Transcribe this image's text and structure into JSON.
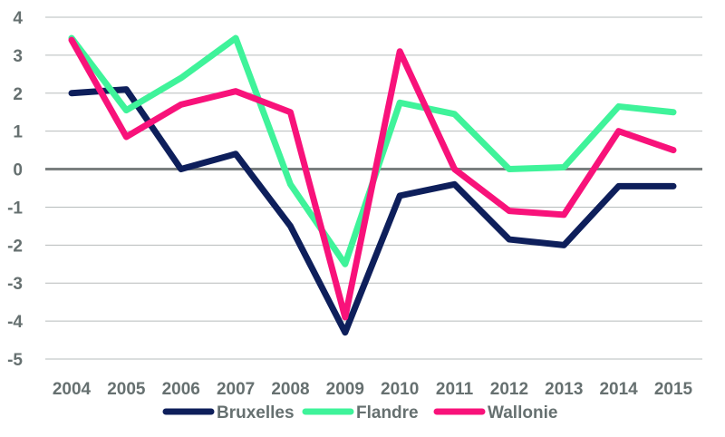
{
  "chart_data": {
    "type": "line",
    "title": "",
    "xlabel": "",
    "ylabel": "",
    "x": [
      "2004",
      "2005",
      "2006",
      "2007",
      "2008",
      "2009",
      "2010",
      "2011",
      "2012",
      "2013",
      "2014",
      "2015"
    ],
    "ylim": [
      -5,
      4
    ],
    "yticks": [
      "4",
      "3",
      "2",
      "1",
      "0",
      "-1",
      "-2",
      "-3",
      "-4",
      "-5"
    ],
    "grid": true,
    "legend_position": "bottom",
    "series": [
      {
        "name": "Bruxelles",
        "color": "#0e1f5b",
        "values": [
          2.0,
          2.1,
          0.0,
          0.4,
          -1.5,
          -4.3,
          -0.7,
          -0.4,
          -1.85,
          -2.0,
          -0.45,
          -0.45
        ]
      },
      {
        "name": "Flandre",
        "color": "#3ff39a",
        "values": [
          3.45,
          1.55,
          2.4,
          3.45,
          -0.4,
          -2.5,
          1.75,
          1.45,
          0.0,
          0.05,
          1.65,
          1.5
        ]
      },
      {
        "name": "Wallonie",
        "color": "#f8127a",
        "values": [
          3.4,
          0.85,
          1.7,
          2.05,
          1.5,
          -3.9,
          3.1,
          0.0,
          -1.1,
          -1.2,
          1.0,
          0.5
        ]
      }
    ]
  }
}
